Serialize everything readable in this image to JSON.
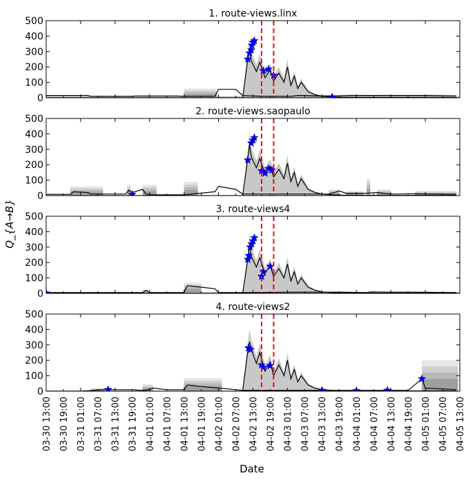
{
  "figure": {
    "shared_ylabel": "Q_{A→B}",
    "xlabel": "Date",
    "x_ticks": [
      "03-30 13:00",
      "03-30 19:00",
      "03-31 01:00",
      "03-31 07:00",
      "03-31 13:00",
      "03-31 19:00",
      "04-01 01:00",
      "04-01 07:00",
      "04-01 13:00",
      "04-01 19:00",
      "04-02 01:00",
      "04-02 07:00",
      "04-02 13:00",
      "04-02 19:00",
      "04-03 01:00",
      "04-03 07:00",
      "04-03 13:00",
      "04-03 19:00",
      "04-04 01:00",
      "04-04 07:00",
      "04-04 13:00",
      "04-04 19:00",
      "04-05 01:00",
      "04-05 07:00",
      "04-05 13:00"
    ]
  },
  "chart_data": [
    {
      "type": "line",
      "title": "1. route-views.linx",
      "ylim": [
        0,
        500
      ],
      "yticks": [
        0,
        100,
        200,
        300,
        400,
        500
      ],
      "series": [
        {
          "name": "",
          "x": [
            0,
            1.2,
            1.3,
            2.5,
            2.6,
            3.8,
            4.0,
            4.9,
            5.0,
            5.5,
            5.7,
            6.0,
            6.3,
            7.1,
            7.3,
            7.5,
            7.9,
            8.4,
            8.8,
            10.0,
            11.0,
            11.9
          ],
          "y": [
            15,
            15,
            10,
            10,
            12,
            12,
            10,
            10,
            55,
            55,
            15,
            12,
            10,
            10,
            15,
            15,
            12,
            12,
            15,
            15,
            15,
            12
          ]
        },
        {
          "name": "",
          "x": [
            0,
            5.7,
            5.85,
            5.9,
            5.95,
            6.1,
            6.2,
            6.35,
            6.5,
            6.6,
            6.75,
            6.9,
            7.0,
            7.1,
            7.2,
            7.3,
            7.4,
            7.6,
            7.8,
            8.0,
            8.3,
            8.6,
            9.0,
            9.5,
            10.0,
            10.5,
            11.0,
            11.5,
            11.9
          ],
          "y": [
            0,
            0,
            250,
            310,
            240,
            170,
            230,
            130,
            180,
            110,
            160,
            100,
            200,
            80,
            140,
            60,
            100,
            40,
            20,
            10,
            5,
            3,
            2,
            2,
            2,
            2,
            2,
            2,
            2
          ]
        }
      ],
      "bands": [
        {
          "x0": 0,
          "x1": 12,
          "y": 12
        },
        {
          "x0": 4.0,
          "x1": 4.95,
          "y": 60
        },
        {
          "x0": 7.6,
          "x1": 11.9,
          "y": 20
        }
      ],
      "markers": [
        {
          "x": 5.85,
          "y": 250
        },
        {
          "x": 5.9,
          "y": 290
        },
        {
          "x": 5.95,
          "y": 310
        },
        {
          "x": 5.97,
          "y": 340
        },
        {
          "x": 6.0,
          "y": 360
        },
        {
          "x": 6.04,
          "y": 370
        },
        {
          "x": 6.3,
          "y": 175
        },
        {
          "x": 6.45,
          "y": 185
        },
        {
          "x": 6.6,
          "y": 145
        },
        {
          "x": 8.3,
          "y": 5
        }
      ],
      "vlines": [
        6.25,
        6.6
      ]
    },
    {
      "type": "line",
      "title": "2. route-views.saopaulo",
      "ylim": [
        0,
        500
      ],
      "yticks": [
        0,
        100,
        200,
        300,
        400,
        500
      ],
      "series": [
        {
          "name": "",
          "x": [
            0,
            0.7,
            0.8,
            1.2,
            1.3,
            2.3,
            2.4,
            2.5,
            2.8,
            2.9,
            3.0,
            4.0,
            4.9,
            5.0,
            5.5,
            5.7,
            6.0,
            7.1,
            8.2,
            8.5,
            8.7,
            9.3,
            9.6,
            10.0,
            10.7,
            11.9
          ],
          "y": [
            8,
            8,
            25,
            20,
            10,
            10,
            35,
            20,
            40,
            10,
            5,
            5,
            25,
            60,
            40,
            10,
            10,
            10,
            10,
            30,
            15,
            15,
            20,
            10,
            12,
            8
          ]
        },
        {
          "name": "",
          "x": [
            0,
            5.7,
            5.85,
            5.9,
            5.95,
            6.1,
            6.2,
            6.35,
            6.5,
            6.6,
            6.75,
            6.9,
            7.0,
            7.1,
            7.2,
            7.3,
            7.4,
            7.6,
            7.8,
            8.0,
            8.3,
            8.6,
            9.0,
            9.5,
            10.0,
            10.5,
            11.0,
            11.5,
            11.9
          ],
          "y": [
            0,
            0,
            240,
            330,
            250,
            180,
            240,
            140,
            190,
            120,
            170,
            110,
            210,
            90,
            150,
            60,
            110,
            40,
            20,
            10,
            5,
            3,
            2,
            2,
            2,
            2,
            2,
            2,
            2
          ]
        }
      ],
      "bands": [
        {
          "x0": 0.7,
          "x1": 1.65,
          "y": 60
        },
        {
          "x0": 2.35,
          "x1": 2.45,
          "y": 70
        },
        {
          "x0": 2.8,
          "x1": 3.2,
          "y": 70
        },
        {
          "x0": 4.0,
          "x1": 4.4,
          "y": 90
        },
        {
          "x0": 8.2,
          "x1": 8.5,
          "y": 40
        },
        {
          "x0": 8.7,
          "x1": 9.2,
          "y": 30
        },
        {
          "x0": 9.3,
          "x1": 9.4,
          "y": 110
        },
        {
          "x0": 9.6,
          "x1": 10.0,
          "y": 40
        },
        {
          "x0": 10.7,
          "x1": 11.9,
          "y": 30
        }
      ],
      "markers": [
        {
          "x": 5.85,
          "y": 230
        },
        {
          "x": 5.95,
          "y": 340
        },
        {
          "x": 6.0,
          "y": 360
        },
        {
          "x": 6.04,
          "y": 375
        },
        {
          "x": 6.25,
          "y": 160
        },
        {
          "x": 6.35,
          "y": 145
        },
        {
          "x": 6.45,
          "y": 175
        },
        {
          "x": 6.55,
          "y": 165
        },
        {
          "x": 2.5,
          "y": 8
        }
      ],
      "vlines": [
        6.25,
        6.6
      ]
    },
    {
      "type": "line",
      "title": "3. route-views4",
      "ylim": [
        0,
        500
      ],
      "yticks": [
        0,
        100,
        200,
        300,
        400,
        500
      ],
      "series": [
        {
          "name": "",
          "x": [
            0,
            1.0,
            2.0,
            2.8,
            2.9,
            3.0,
            4.0,
            4.1,
            4.5,
            4.9,
            5.0,
            5.5,
            5.7,
            6.0,
            7.1,
            8.5,
            9.3,
            9.4,
            10.0,
            10.7,
            11.9
          ],
          "y": [
            5,
            5,
            5,
            5,
            20,
            5,
            5,
            50,
            40,
            30,
            5,
            5,
            5,
            5,
            8,
            8,
            5,
            10,
            8,
            8,
            5
          ]
        },
        {
          "name": "",
          "x": [
            0,
            5.7,
            5.85,
            5.9,
            5.95,
            6.1,
            6.2,
            6.35,
            6.5,
            6.6,
            6.75,
            6.9,
            7.0,
            7.1,
            7.2,
            7.3,
            7.4,
            7.6,
            7.8,
            8.0,
            8.3,
            8.6,
            9.0,
            9.5,
            10.0,
            10.5,
            11.0,
            11.5,
            11.9
          ],
          "y": [
            0,
            0,
            220,
            310,
            240,
            170,
            230,
            130,
            180,
            110,
            160,
            100,
            190,
            80,
            140,
            60,
            100,
            40,
            20,
            10,
            5,
            3,
            2,
            2,
            2,
            2,
            2,
            2,
            2
          ]
        }
      ],
      "bands": [
        {
          "x0": 0,
          "x1": 12,
          "y": 10
        },
        {
          "x0": 4.0,
          "x1": 4.5,
          "y": 70
        },
        {
          "x0": 2.8,
          "x1": 2.95,
          "y": 25
        }
      ],
      "markers": [
        {
          "x": 5.85,
          "y": 220
        },
        {
          "x": 5.88,
          "y": 245
        },
        {
          "x": 5.92,
          "y": 300
        },
        {
          "x": 5.96,
          "y": 320
        },
        {
          "x": 6.0,
          "y": 340
        },
        {
          "x": 6.04,
          "y": 360
        },
        {
          "x": 6.25,
          "y": 110
        },
        {
          "x": 6.3,
          "y": 140
        },
        {
          "x": 6.5,
          "y": 175
        },
        {
          "x": 0.0,
          "y": 2
        }
      ],
      "vlines": [
        6.25,
        6.6
      ]
    },
    {
      "type": "line",
      "title": "4. route-views2",
      "ylim": [
        0,
        500
      ],
      "yticks": [
        0,
        100,
        200,
        300,
        400,
        500
      ],
      "series": [
        {
          "name": "",
          "x": [
            0,
            1.0,
            1.4,
            1.5,
            2.5,
            2.8,
            3.0,
            3.1,
            3.5,
            4.0,
            4.1,
            4.5,
            5.0,
            5.5,
            5.7,
            6.0,
            8.0,
            9.0,
            10.5,
            10.9,
            11.0,
            11.9
          ],
          "y": [
            0,
            0,
            5,
            10,
            10,
            5,
            10,
            20,
            10,
            10,
            40,
            30,
            20,
            10,
            5,
            5,
            5,
            5,
            5,
            80,
            20,
            10
          ]
        },
        {
          "name": "",
          "x": [
            0,
            5.7,
            5.85,
            5.9,
            5.95,
            6.1,
            6.2,
            6.35,
            6.5,
            6.6,
            6.75,
            6.9,
            7.0,
            7.1,
            7.2,
            7.3,
            7.4,
            7.6,
            7.8,
            8.0,
            8.3,
            8.6,
            9.0,
            9.5,
            10.0,
            10.5,
            11.0,
            11.5,
            11.9
          ],
          "y": [
            0,
            0,
            260,
            320,
            270,
            180,
            250,
            130,
            190,
            100,
            170,
            100,
            200,
            80,
            140,
            60,
            100,
            40,
            20,
            10,
            5,
            3,
            2,
            2,
            2,
            2,
            2,
            2,
            2
          ]
        }
      ],
      "bands": [
        {
          "x0": 1.3,
          "x1": 1.7,
          "y": 20
        },
        {
          "x0": 2.8,
          "x1": 3.1,
          "y": 45
        },
        {
          "x0": 4.0,
          "x1": 5.1,
          "y": 85
        },
        {
          "x0": 10.9,
          "x1": 11.95,
          "y": 200
        }
      ],
      "markers": [
        {
          "x": 5.87,
          "y": 280
        },
        {
          "x": 5.93,
          "y": 270
        },
        {
          "x": 6.25,
          "y": 170
        },
        {
          "x": 6.3,
          "y": 155
        },
        {
          "x": 6.5,
          "y": 165
        },
        {
          "x": 1.8,
          "y": 10
        },
        {
          "x": 8.0,
          "y": 5
        },
        {
          "x": 9.0,
          "y": 3
        },
        {
          "x": 9.9,
          "y": 5
        },
        {
          "x": 10.9,
          "y": 80
        }
      ],
      "vlines": [
        6.25,
        6.6
      ]
    }
  ]
}
